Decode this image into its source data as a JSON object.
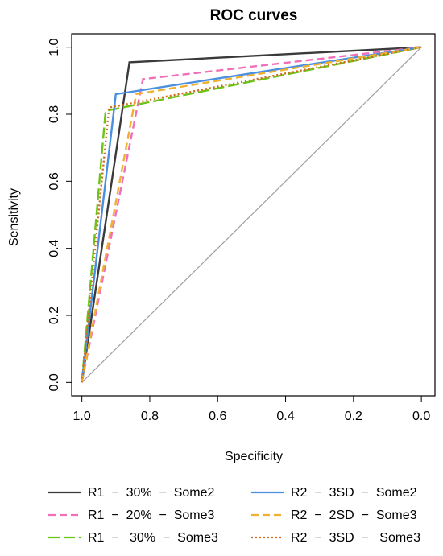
{
  "chart_data": {
    "type": "line",
    "title": "ROC curves",
    "xlabel": "Specificity",
    "ylabel": "Sensitivity",
    "xlim": [
      1.03,
      -0.04
    ],
    "ylim": [
      -0.04,
      1.04
    ],
    "x_reversed": true,
    "xticks": [
      1.0,
      0.8,
      0.6,
      0.4,
      0.2,
      0.0
    ],
    "xtick_labels": [
      "1.0",
      "0.8",
      "0.6",
      "0.4",
      "0.2",
      "0.0"
    ],
    "yticks": [
      0.0,
      0.2,
      0.4,
      0.6,
      0.8,
      1.0
    ],
    "ytick_labels": [
      "0.0",
      "0.2",
      "0.4",
      "0.6",
      "0.8",
      "1.0"
    ],
    "grid": false,
    "legend_position": "bottom",
    "diagonal": {
      "color": "#a0a0a0",
      "x": [
        1.0,
        0.0
      ],
      "y": [
        0.0,
        1.0
      ]
    },
    "series": [
      {
        "name": "R1  −  30%  −  Some2",
        "color": "#3a3a3a",
        "dash": "solid",
        "x": [
          1.0,
          0.86,
          0.0
        ],
        "y": [
          0.0,
          0.955,
          1.0
        ]
      },
      {
        "name": "R1  −  20%  −  Some3",
        "color": "#f06fb8",
        "dash": "dash",
        "x": [
          1.0,
          0.82,
          0.0
        ],
        "y": [
          0.0,
          0.905,
          1.0
        ]
      },
      {
        "name": "R1  −   30%  −  Some3",
        "color": "#6cc417",
        "dash": "longdash",
        "x": [
          1.0,
          0.93,
          0.0
        ],
        "y": [
          0.0,
          0.81,
          1.0
        ]
      },
      {
        "name": "R2  −  3SD  −  Some2",
        "color": "#4a90e2",
        "dash": "solid",
        "x": [
          1.0,
          0.9,
          0.0
        ],
        "y": [
          0.0,
          0.86,
          1.0
        ]
      },
      {
        "name": "R2  −  2SD  −  Some3",
        "color": "#f0b030",
        "dash": "dash",
        "x": [
          1.0,
          0.84,
          0.0
        ],
        "y": [
          0.0,
          0.86,
          1.0
        ]
      },
      {
        "name": "R2  −  3SD  −   Some3",
        "color": "#d2691e",
        "dash": "dotted",
        "x": [
          1.0,
          0.92,
          0.0
        ],
        "y": [
          0.0,
          0.82,
          1.0
        ]
      }
    ]
  }
}
